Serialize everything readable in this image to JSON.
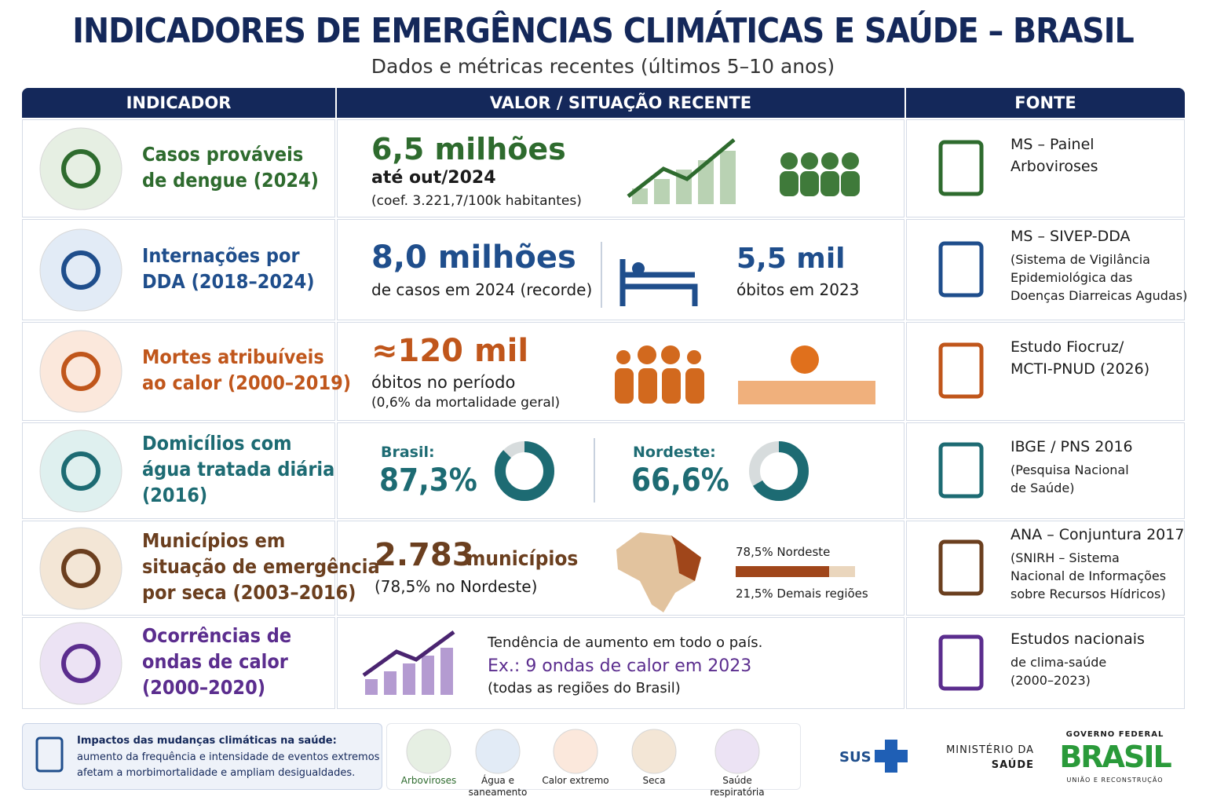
{
  "header": {
    "title": "INDICADORES DE EMERGÊNCIAS CLIMÁTICAS E SAÚDE – BRASIL",
    "subtitle": "Dados e métricas recentes (últimos 5–10 anos)"
  },
  "table": {
    "columns": [
      "INDICADOR",
      "VALOR / SITUAÇÃO RECENTE",
      "FONTE"
    ],
    "rows": [
      {
        "indicator": [
          "Casos prováveis",
          "de dengue (2024)"
        ],
        "main": "6,5 milhões",
        "lines": [
          "até out/2024",
          "(coef. 3.221,7/100k habitantes)"
        ],
        "source": [
          "MS – Painel",
          "Arboviroses"
        ]
      },
      {
        "indicator": [
          "Internações por",
          "DDA (2018–2024)"
        ],
        "main": "8,0 milhões",
        "lines": [
          "de casos em 2024 (recorde)"
        ],
        "main2": "5,5 mil",
        "lines2": [
          "óbitos em 2023"
        ],
        "source": [
          "MS – SIVEP-DDA",
          "(Sistema de Vigilância",
          "Epidemiológica das",
          "Doenças Diarreicas Agudas)"
        ]
      },
      {
        "indicator": [
          "Mortes atribuíveis",
          "ao calor (2000–2019)"
        ],
        "main": "≈120 mil",
        "lines": [
          "óbitos no período",
          "(0,6% da mortalidade geral)"
        ],
        "source": [
          "Estudo Fiocruz/",
          "MCTI-PNUD (2026)"
        ]
      },
      {
        "indicator": [
          "Domicílios com",
          "água tratada diária",
          "(2016)"
        ],
        "donuts": [
          {
            "region": "Brasil:",
            "label": "87,3%",
            "value": 87.3
          },
          {
            "region": "Nordeste:",
            "label": "66,6%",
            "value": 66.6
          }
        ],
        "source": [
          "IBGE / PNS 2016",
          "(Pesquisa Nacional",
          "de Saúde)"
        ]
      },
      {
        "indicator": [
          "Municípios em",
          "situação de emergência",
          "por seca (2003–2016)"
        ],
        "main": "2.783",
        "main_unit": "municípios",
        "lines": [
          "(78,5% no Nordeste)"
        ],
        "bar": [
          {
            "label": "78,5% Nordeste",
            "value": 78.5
          },
          {
            "label": "21,5% Demais regiões",
            "value": 21.5
          }
        ],
        "source": [
          "ANA – Conjuntura 2017",
          "(SNIRH – Sistema",
          "Nacional de Informações",
          "sobre Recursos Hídricos)"
        ]
      },
      {
        "indicator": [
          "Ocorrências de",
          "ondas de calor",
          "(2000–2020)"
        ],
        "lines": [
          "Tendência de aumento em todo o país.",
          "Ex.: 9 ondas de calor em 2023",
          "(todas as regiões do Brasil)"
        ],
        "source": [
          "Estudos nacionais",
          "de clima-saúde",
          "(2000–2023)"
        ]
      }
    ]
  },
  "footer": {
    "note_title": "Impactos das mudanças climáticas na saúde:",
    "note_lines": [
      "aumento da frequência e intensidade de eventos extremos",
      "afetam a morbimortalidade e ampliam desigualdades."
    ],
    "icons": [
      [
        "Arboviroses"
      ],
      [
        "Água e",
        "saneamento"
      ],
      [
        "Calor extremo"
      ],
      [
        "Seca"
      ],
      [
        "Saúde",
        "respiratória"
      ]
    ],
    "logos": {
      "sus": "SUS",
      "ministry": [
        "MINISTÉRIO DA",
        "SAÚDE"
      ],
      "gov_top": "GOVERNO FEDERAL",
      "gov_name": "BRASIL",
      "gov_bottom": "UNIÃO E RECONSTRUÇÃO"
    }
  }
}
